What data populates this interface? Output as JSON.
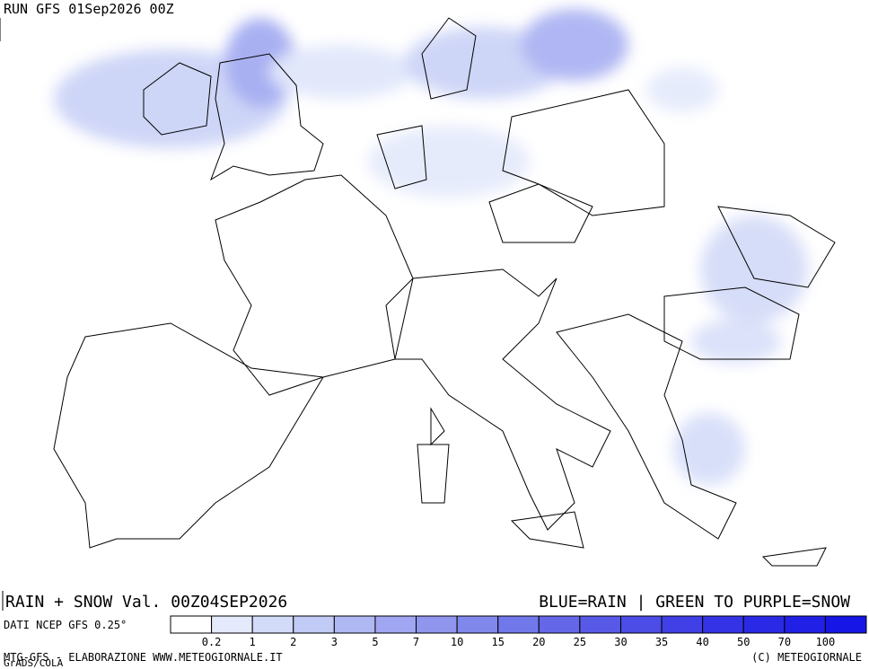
{
  "header": {
    "run": "RUN GFS 01Sep2026 00Z"
  },
  "title": {
    "left": "RAIN + SNOW Val. 00Z04SEP2026",
    "right": "BLUE=RAIN | GREEN TO PURPLE=SNOW"
  },
  "legend": {
    "source": "DATI NCEP GFS 0.25°",
    "labels": [
      "0.2",
      "1",
      "2",
      "3",
      "5",
      "7",
      "10",
      "15",
      "20",
      "25",
      "30",
      "35",
      "40",
      "50",
      "70",
      "100"
    ],
    "colors": [
      "#ffffff",
      "#e4eafb",
      "#d2dbf8",
      "#c2caf6",
      "#b0b8f3",
      "#a0a6f1",
      "#9096ee",
      "#8088ec",
      "#7078ea",
      "#6468e8",
      "#585ae7",
      "#4c4ce6",
      "#4040e6",
      "#3434e6",
      "#2a2ae6",
      "#2020e6",
      "#1616e6"
    ]
  },
  "footer": {
    "left": "MTG-GFS - ELABORAZIONE WWW.METEOGIORNALE.IT",
    "right": "(C) METEOGIORNALE",
    "credit": "GrADS/COLA"
  }
}
